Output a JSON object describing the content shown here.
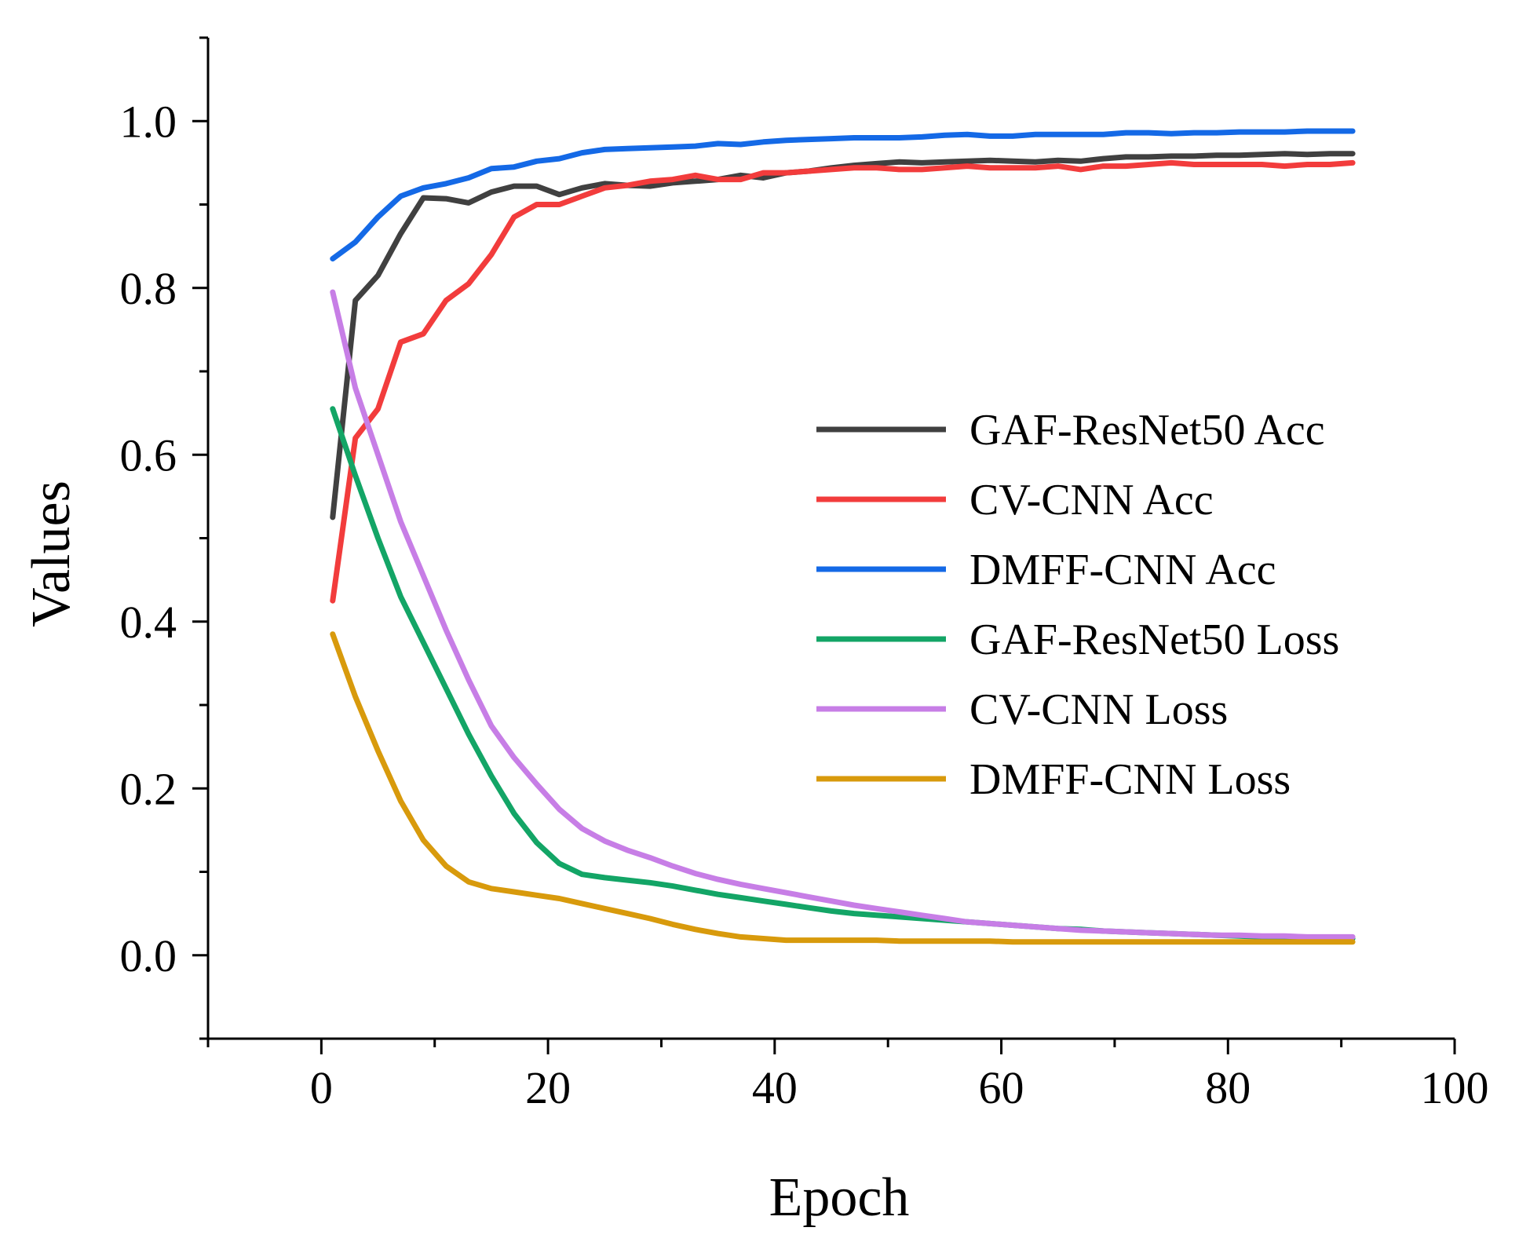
{
  "chart_data": {
    "type": "line",
    "xlabel": "Epoch",
    "ylabel": "Values",
    "xlim": [
      -10,
      100
    ],
    "ylim": [
      -0.1,
      1.1
    ],
    "x_ticks": [
      0,
      20,
      40,
      60,
      80,
      100
    ],
    "x_tick_labels": [
      "0",
      "20",
      "40",
      "60",
      "80",
      "100"
    ],
    "y_ticks": [
      0.0,
      0.2,
      0.4,
      0.6,
      0.8,
      1.0
    ],
    "y_tick_labels": [
      "0.0",
      "0.2",
      "0.4",
      "0.6",
      "0.8",
      "1.0"
    ],
    "grid": false,
    "legend_position": "center-right",
    "series": [
      {
        "name": "GAF-ResNet50 Acc",
        "color": "#404040",
        "x": [
          1,
          3,
          5,
          7,
          9,
          11,
          13,
          15,
          17,
          19,
          21,
          23,
          25,
          27,
          29,
          31,
          33,
          35,
          37,
          39,
          41,
          43,
          45,
          47,
          49,
          51,
          53,
          55,
          57,
          59,
          61,
          63,
          65,
          67,
          69,
          71,
          73,
          75,
          77,
          79,
          81,
          83,
          85,
          87,
          89,
          91
        ],
        "y": [
          0.525,
          0.785,
          0.815,
          0.865,
          0.908,
          0.907,
          0.902,
          0.915,
          0.922,
          0.922,
          0.912,
          0.92,
          0.925,
          0.923,
          0.922,
          0.926,
          0.928,
          0.93,
          0.935,
          0.932,
          0.938,
          0.94,
          0.944,
          0.947,
          0.949,
          0.951,
          0.95,
          0.951,
          0.952,
          0.953,
          0.952,
          0.951,
          0.953,
          0.952,
          0.955,
          0.957,
          0.957,
          0.958,
          0.958,
          0.959,
          0.959,
          0.96,
          0.961,
          0.96,
          0.961,
          0.961
        ]
      },
      {
        "name": "CV-CNN Acc",
        "color": "#f23c3c",
        "x": [
          1,
          3,
          5,
          7,
          9,
          11,
          13,
          15,
          17,
          19,
          21,
          23,
          25,
          27,
          29,
          31,
          33,
          35,
          37,
          39,
          41,
          43,
          45,
          47,
          49,
          51,
          53,
          55,
          57,
          59,
          61,
          63,
          65,
          67,
          69,
          71,
          73,
          75,
          77,
          79,
          81,
          83,
          85,
          87,
          89,
          91
        ],
        "y": [
          0.425,
          0.62,
          0.655,
          0.735,
          0.745,
          0.785,
          0.805,
          0.84,
          0.885,
          0.9,
          0.9,
          0.91,
          0.92,
          0.923,
          0.928,
          0.93,
          0.935,
          0.93,
          0.93,
          0.938,
          0.938,
          0.94,
          0.942,
          0.944,
          0.944,
          0.942,
          0.942,
          0.944,
          0.946,
          0.944,
          0.944,
          0.944,
          0.946,
          0.942,
          0.946,
          0.946,
          0.948,
          0.95,
          0.948,
          0.948,
          0.948,
          0.948,
          0.946,
          0.948,
          0.948,
          0.95
        ]
      },
      {
        "name": "DMFF-CNN Acc",
        "color": "#1469e6",
        "x": [
          1,
          3,
          5,
          7,
          9,
          11,
          13,
          15,
          17,
          19,
          21,
          23,
          25,
          27,
          29,
          31,
          33,
          35,
          37,
          39,
          41,
          43,
          45,
          47,
          49,
          51,
          53,
          55,
          57,
          59,
          61,
          63,
          65,
          67,
          69,
          71,
          73,
          75,
          77,
          79,
          81,
          83,
          85,
          87,
          89,
          91
        ],
        "y": [
          0.835,
          0.855,
          0.885,
          0.91,
          0.92,
          0.925,
          0.932,
          0.943,
          0.945,
          0.952,
          0.955,
          0.962,
          0.966,
          0.967,
          0.968,
          0.969,
          0.97,
          0.973,
          0.972,
          0.975,
          0.977,
          0.978,
          0.979,
          0.98,
          0.98,
          0.98,
          0.981,
          0.983,
          0.984,
          0.982,
          0.982,
          0.984,
          0.984,
          0.984,
          0.984,
          0.986,
          0.986,
          0.985,
          0.986,
          0.986,
          0.987,
          0.987,
          0.987,
          0.988,
          0.988,
          0.988
        ]
      },
      {
        "name": "GAF-ResNet50 Loss",
        "color": "#13a566",
        "x": [
          1,
          3,
          5,
          7,
          9,
          11,
          13,
          15,
          17,
          19,
          21,
          23,
          25,
          27,
          29,
          31,
          33,
          35,
          37,
          39,
          41,
          43,
          45,
          47,
          49,
          51,
          53,
          55,
          57,
          59,
          61,
          63,
          65,
          67,
          69,
          71,
          73,
          75,
          77,
          79,
          81,
          83,
          85,
          87,
          89,
          91
        ],
        "y": [
          0.655,
          0.575,
          0.5,
          0.43,
          0.375,
          0.32,
          0.265,
          0.215,
          0.17,
          0.135,
          0.11,
          0.097,
          0.093,
          0.09,
          0.087,
          0.083,
          0.078,
          0.073,
          0.069,
          0.065,
          0.061,
          0.057,
          0.053,
          0.05,
          0.048,
          0.046,
          0.044,
          0.042,
          0.04,
          0.038,
          0.036,
          0.034,
          0.032,
          0.031,
          0.029,
          0.028,
          0.027,
          0.026,
          0.025,
          0.024,
          0.023,
          0.022,
          0.021,
          0.021,
          0.02,
          0.02
        ]
      },
      {
        "name": "CV-CNN Loss",
        "color": "#c77ee6",
        "x": [
          1,
          3,
          5,
          7,
          9,
          11,
          13,
          15,
          17,
          19,
          21,
          23,
          25,
          27,
          29,
          31,
          33,
          35,
          37,
          39,
          41,
          43,
          45,
          47,
          49,
          51,
          53,
          55,
          57,
          59,
          61,
          63,
          65,
          67,
          69,
          71,
          73,
          75,
          77,
          79,
          81,
          83,
          85,
          87,
          89,
          91
        ],
        "y": [
          0.795,
          0.68,
          0.6,
          0.52,
          0.455,
          0.39,
          0.33,
          0.275,
          0.237,
          0.205,
          0.175,
          0.152,
          0.137,
          0.126,
          0.117,
          0.107,
          0.098,
          0.091,
          0.085,
          0.08,
          0.075,
          0.07,
          0.065,
          0.06,
          0.056,
          0.052,
          0.048,
          0.044,
          0.04,
          0.038,
          0.036,
          0.034,
          0.032,
          0.03,
          0.029,
          0.028,
          0.027,
          0.026,
          0.025,
          0.024,
          0.024,
          0.023,
          0.023,
          0.022,
          0.022,
          0.022
        ]
      },
      {
        "name": "DMFF-CNN Loss",
        "color": "#d89a0c",
        "x": [
          1,
          3,
          5,
          7,
          9,
          11,
          13,
          15,
          17,
          19,
          21,
          23,
          25,
          27,
          29,
          31,
          33,
          35,
          37,
          39,
          41,
          43,
          45,
          47,
          49,
          51,
          53,
          55,
          57,
          59,
          61,
          63,
          65,
          67,
          69,
          71,
          73,
          75,
          77,
          79,
          81,
          83,
          85,
          87,
          89,
          91
        ],
        "y": [
          0.385,
          0.31,
          0.245,
          0.185,
          0.138,
          0.107,
          0.088,
          0.08,
          0.076,
          0.072,
          0.068,
          0.062,
          0.056,
          0.05,
          0.044,
          0.037,
          0.031,
          0.026,
          0.022,
          0.02,
          0.018,
          0.018,
          0.018,
          0.018,
          0.018,
          0.017,
          0.017,
          0.017,
          0.017,
          0.017,
          0.016,
          0.016,
          0.016,
          0.016,
          0.016,
          0.016,
          0.016,
          0.016,
          0.016,
          0.016,
          0.016,
          0.016,
          0.016,
          0.016,
          0.016,
          0.016
        ]
      }
    ]
  }
}
